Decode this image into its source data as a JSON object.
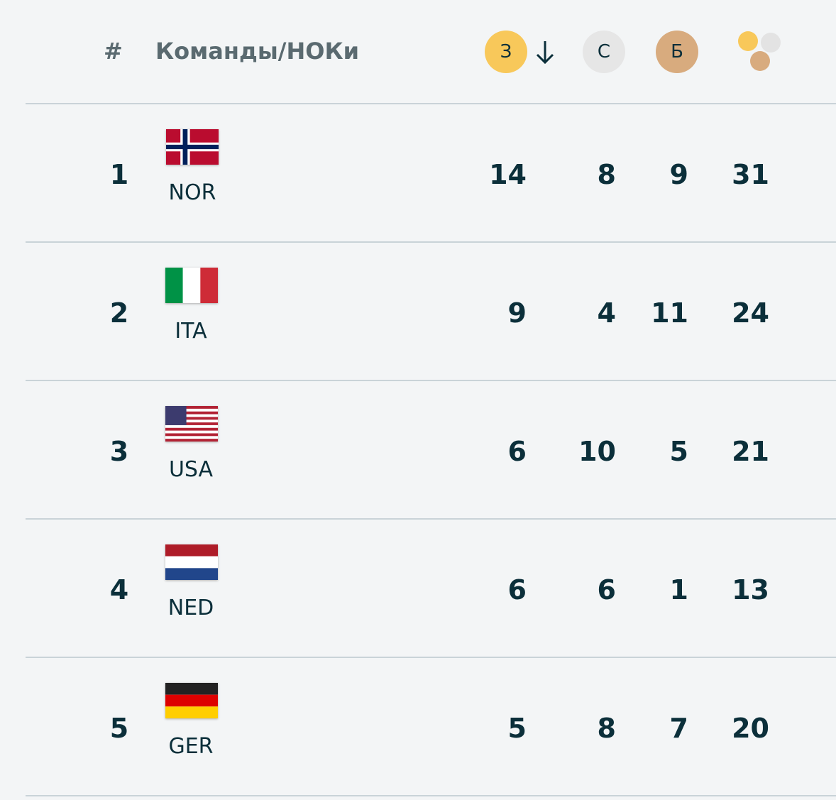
{
  "header": {
    "rank_label": "#",
    "team_label": "Команды/НОКи",
    "gold": "З",
    "silver": "С",
    "bronze": "Б"
  },
  "rows": [
    {
      "rank": 1,
      "code": "NOR",
      "gold": 14,
      "silver": 8,
      "bronze": 9,
      "total": 31
    },
    {
      "rank": 2,
      "code": "ITA",
      "gold": 9,
      "silver": 4,
      "bronze": 11,
      "total": 24
    },
    {
      "rank": 3,
      "code": "USA",
      "gold": 6,
      "silver": 10,
      "bronze": 5,
      "total": 21
    },
    {
      "rank": 4,
      "code": "NED",
      "gold": 6,
      "silver": 6,
      "bronze": 1,
      "total": 13
    },
    {
      "rank": 5,
      "code": "GER",
      "gold": 5,
      "silver": 8,
      "bronze": 7,
      "total": 20
    }
  ]
}
